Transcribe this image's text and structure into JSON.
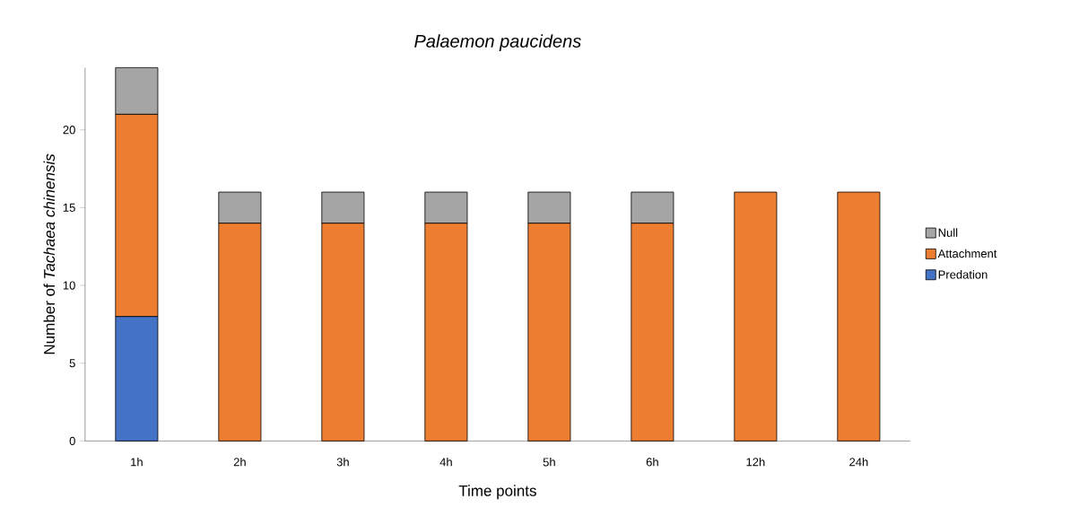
{
  "chart_data": {
    "type": "bar",
    "stacked": true,
    "title": "Palaemon paucidens",
    "xlabel": "Time points",
    "ylabel": "Number of *Tachaea chinensis*",
    "categories": [
      "1h",
      "2h",
      "3h",
      "4h",
      "5h",
      "6h",
      "12h",
      "24h"
    ],
    "series": [
      {
        "name": "Predation",
        "color": "#4472c4",
        "values": [
          8,
          0,
          0,
          0,
          0,
          0,
          0,
          0
        ]
      },
      {
        "name": "Attachment",
        "color": "#ed7d31",
        "values": [
          13,
          14,
          14,
          14,
          14,
          14,
          16,
          16
        ]
      },
      {
        "name": "Null",
        "color": "#a5a5a5",
        "values": [
          3,
          2,
          2,
          2,
          2,
          2,
          0,
          0
        ]
      }
    ],
    "ylim": [
      0,
      24
    ],
    "yticks": [
      0,
      5,
      10,
      15,
      20
    ],
    "grid": false,
    "legend": "right"
  }
}
